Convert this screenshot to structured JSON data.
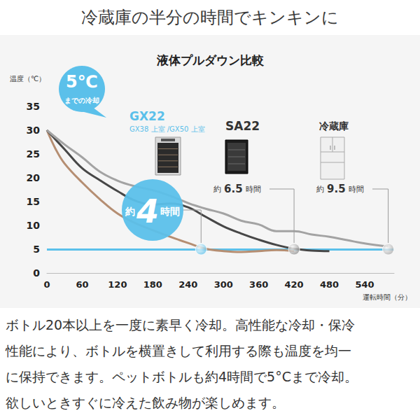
{
  "title": "冷蔵庫の半分の時間でキンキンに",
  "chart_data": {
    "type": "line",
    "title": "液体プルダウン比較",
    "y_label": "温度（℃）",
    "x_label": "運転時間（分）",
    "xlim": [
      0,
      590
    ],
    "xticks": [
      0,
      60,
      120,
      180,
      240,
      300,
      360,
      420,
      480,
      540
    ],
    "ylim": [
      0,
      35
    ],
    "yticks": [
      0,
      5,
      10,
      15,
      20,
      25,
      30,
      35
    ],
    "grid": false,
    "badge": [
      "5℃",
      "までの冷却"
    ],
    "threshold": {
      "value": 5,
      "color": "#5bc0ea"
    },
    "series": [
      {
        "name": "GX22",
        "subtitle": "GX38 上室 /GX50 上室",
        "color": "#b58e72",
        "time_label": [
          "約",
          "4",
          "時間"
        ],
        "point": {
          "x": 262,
          "y": 5,
          "color": "#5bc0ea"
        },
        "x": [
          0,
          15,
          30,
          60,
          90,
          120,
          150,
          180,
          210,
          240,
          270,
          300,
          330,
          360,
          390,
          420
        ],
        "values": [
          30,
          26,
          23,
          19,
          15.5,
          12.5,
          10.5,
          9,
          7.6,
          6.3,
          5.1,
          4.6,
          4.4,
          4.6,
          4.8,
          4.6
        ]
      },
      {
        "name": "SA22",
        "color": "#474747",
        "time_label": [
          "約",
          "6.5",
          "時間"
        ],
        "point": {
          "x": 420,
          "y": 5,
          "color": "#8a8a8a"
        },
        "x": [
          0,
          30,
          60,
          90,
          120,
          150,
          180,
          210,
          240,
          270,
          300,
          330,
          360,
          390,
          420,
          450,
          480
        ],
        "values": [
          30,
          26,
          22,
          19.5,
          17.2,
          15.2,
          14.4,
          14.6,
          13.8,
          11.8,
          9.8,
          8.3,
          7,
          5.9,
          5.1,
          4.7,
          4.6
        ]
      },
      {
        "name": "冷蔵庫",
        "color": "#a3a3a3",
        "time_label": [
          "約",
          "9.5",
          "時間"
        ],
        "point": {
          "x": 580,
          "y": 5,
          "color": "#a8a8a8"
        },
        "x": [
          0,
          30,
          60,
          90,
          120,
          150,
          180,
          210,
          240,
          270,
          300,
          330,
          360,
          390,
          420,
          450,
          480,
          510,
          540,
          570,
          580
        ],
        "values": [
          30,
          27,
          24.3,
          21.3,
          19.4,
          18.2,
          17.4,
          16.2,
          14.7,
          13.5,
          12.5,
          11,
          10.2,
          8.8,
          8.8,
          8.1,
          7.6,
          6.9,
          6.2,
          5.7,
          5.6
        ]
      }
    ]
  },
  "paragraph": [
    "ボトル20本以上を一度に素早く冷却。高性能な冷却・保冷",
    "性能により、ボトルを横置きして利用する際も温度を均一",
    "に保持できます。ペットボトルも約4時間で5°Cまで冷却。",
    "欲しいときすぐに冷えた飲み物が楽しめます。"
  ]
}
